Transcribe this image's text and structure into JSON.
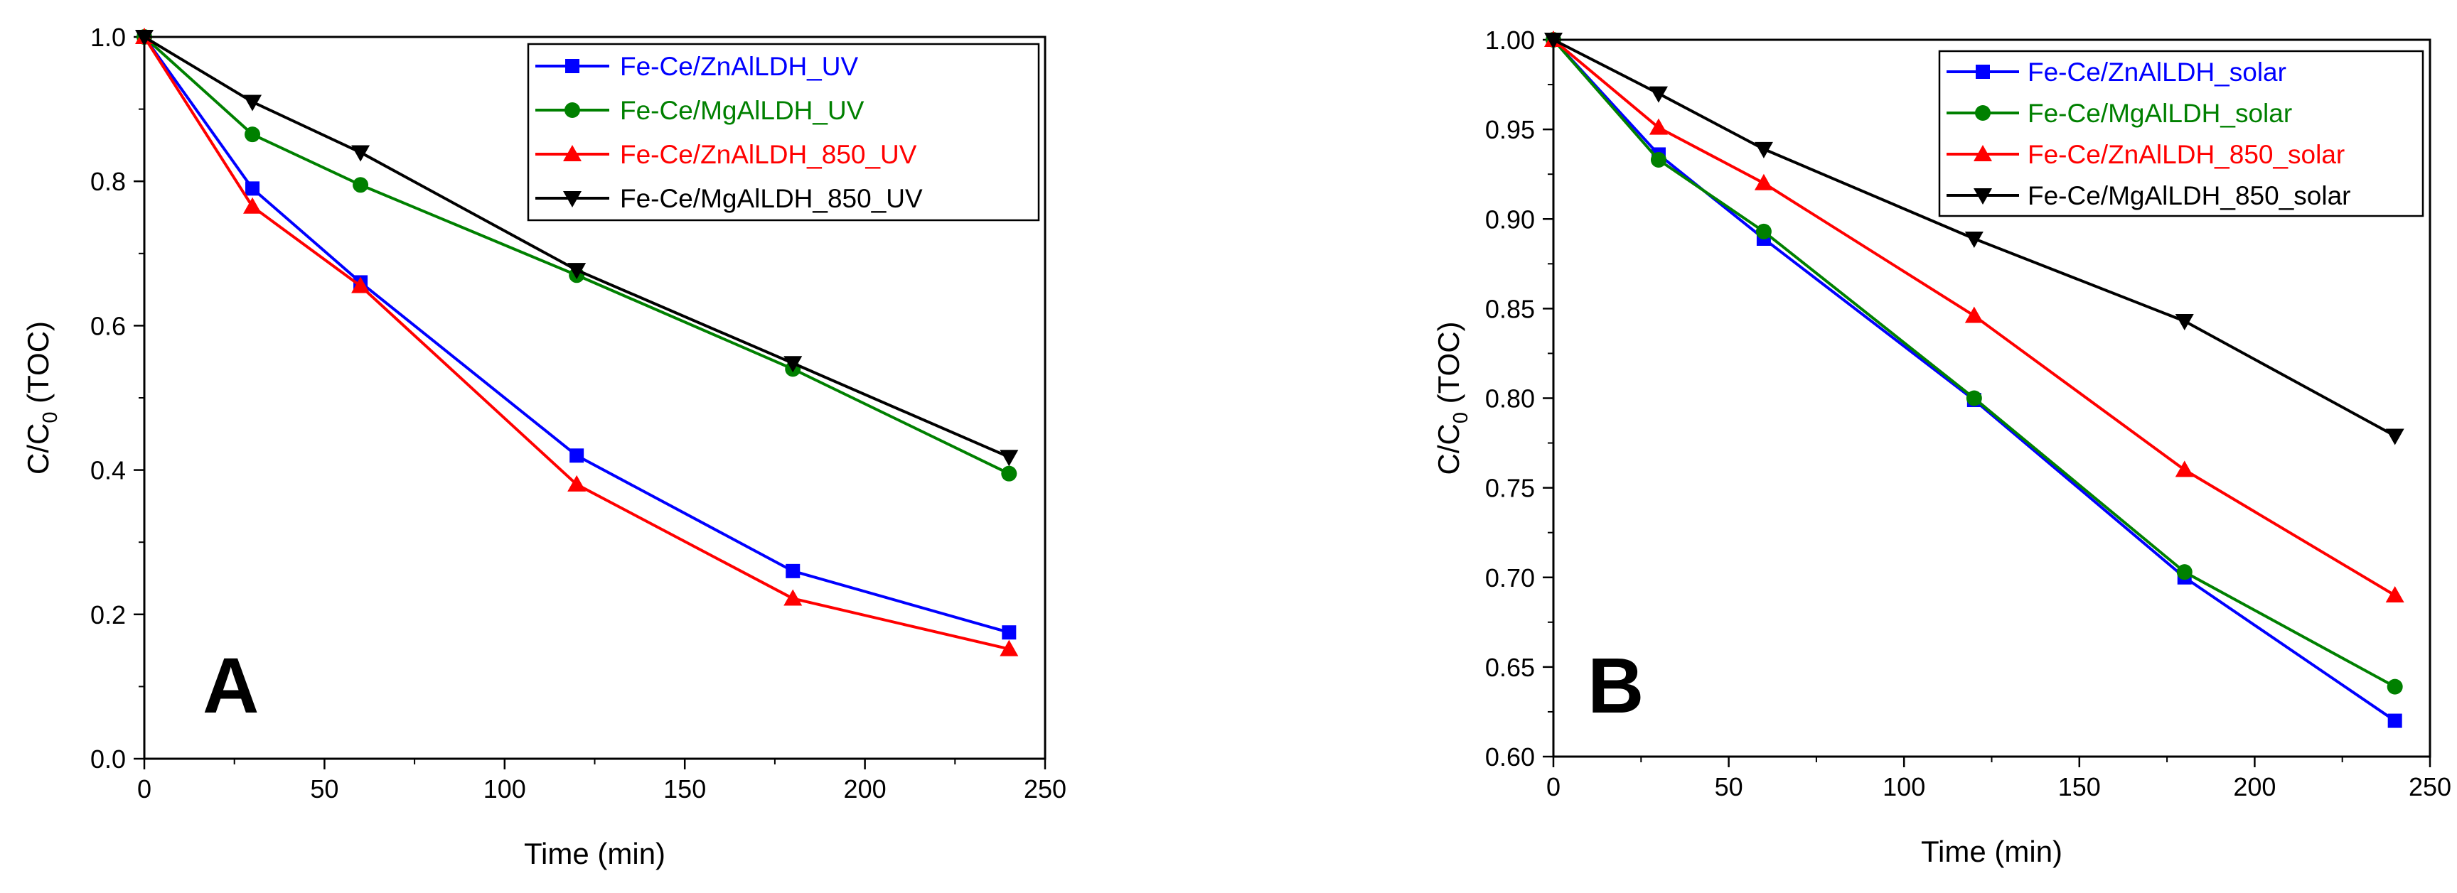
{
  "chart_data": [
    {
      "type": "line",
      "panel": "A",
      "xlabel": "Time (min)",
      "ylabel": {
        "base": "C/C",
        "sub": "0",
        "suffix": " (TOC)"
      },
      "xlim": [
        0,
        250
      ],
      "ylim": [
        0.0,
        1.0
      ],
      "xticks": [
        0,
        50,
        100,
        150,
        200,
        250
      ],
      "xtick_labels": [
        "0",
        "50",
        "100",
        "150",
        "200",
        "250"
      ],
      "yticks": [
        0.0,
        0.2,
        0.4,
        0.6,
        0.8,
        1.0
      ],
      "ytick_labels": [
        "0.0",
        "0.2",
        "0.4",
        "0.6",
        "0.8",
        "1.0"
      ],
      "legend_position": "top-right",
      "x": [
        0,
        30,
        60,
        120,
        180,
        240
      ],
      "series": [
        {
          "name": "Fe-Ce/ZnAlLDH_UV",
          "color": "#0000ff",
          "marker": "square",
          "values": [
            1.0,
            0.79,
            0.66,
            0.42,
            0.26,
            0.175
          ]
        },
        {
          "name": "Fe-Ce/MgAlLDH_UV",
          "color": "#008000",
          "marker": "circle",
          "values": [
            1.0,
            0.865,
            0.795,
            0.67,
            0.54,
            0.395
          ]
        },
        {
          "name": "Fe-Ce/ZnAlLDH_850_UV",
          "color": "#ff0000",
          "marker": "triangle-up",
          "values": [
            1.0,
            0.765,
            0.655,
            0.38,
            0.222,
            0.152
          ]
        },
        {
          "name": "Fe-Ce/MgAlLDH_850_UV",
          "color": "#000000",
          "marker": "triangle-down",
          "values": [
            1.0,
            0.91,
            0.84,
            0.677,
            0.548,
            0.418
          ]
        }
      ]
    },
    {
      "type": "line",
      "panel": "B",
      "xlabel": "Time (min)",
      "ylabel": {
        "base": "C/C",
        "sub": "0",
        "suffix": " (TOC)"
      },
      "xlim": [
        0,
        250
      ],
      "ylim": [
        0.6,
        1.0
      ],
      "xticks": [
        0,
        50,
        100,
        150,
        200,
        250
      ],
      "xtick_labels": [
        "0",
        "50",
        "100",
        "150",
        "200",
        "250"
      ],
      "yticks": [
        0.6,
        0.65,
        0.7,
        0.75,
        0.8,
        0.85,
        0.9,
        0.95,
        1.0
      ],
      "ytick_labels": [
        "0.60",
        "0.65",
        "0.70",
        "0.75",
        "0.80",
        "0.85",
        "0.90",
        "0.95",
        "1.00"
      ],
      "legend_position": "top-right",
      "x": [
        0,
        30,
        60,
        120,
        180,
        240
      ],
      "series": [
        {
          "name": "Fe-Ce/ZnAlLDH_solar",
          "color": "#0000ff",
          "marker": "square",
          "values": [
            1.0,
            0.936,
            0.889,
            0.799,
            0.7,
            0.62
          ]
        },
        {
          "name": "Fe-Ce/MgAlLDH_solar",
          "color": "#008000",
          "marker": "circle",
          "values": [
            1.0,
            0.933,
            0.893,
            0.8,
            0.703,
            0.639
          ]
        },
        {
          "name": "Fe-Ce/ZnAlLDH_850_solar",
          "color": "#ff0000",
          "marker": "triangle-up",
          "values": [
            1.0,
            0.951,
            0.92,
            0.846,
            0.76,
            0.69
          ]
        },
        {
          "name": "Fe-Ce/MgAlLDH_850_solar",
          "color": "#000000",
          "marker": "triangle-down",
          "values": [
            1.0,
            0.97,
            0.939,
            0.889,
            0.843,
            0.779
          ]
        }
      ]
    }
  ]
}
